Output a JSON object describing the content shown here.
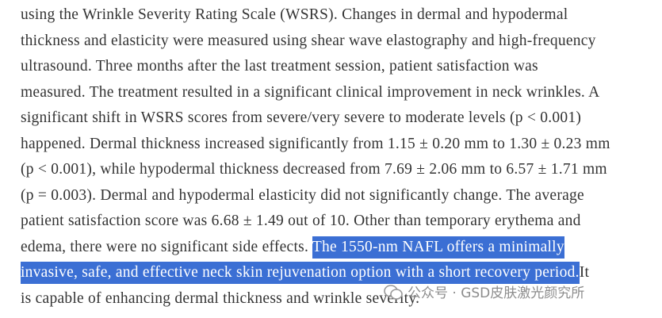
{
  "paragraph": {
    "lines": [
      [
        {
          "text": "using the Wrinkle Severity Rating Scale (WSRS). Changes in dermal and hypodermal"
        }
      ],
      [
        {
          "text": "thickness and elasticity were measured using shear wave elastography and high-frequency"
        }
      ],
      [
        {
          "text": "ultrasound. Three months after the last treatment session, patient satisfaction was"
        }
      ],
      [
        {
          "text": "measured. The treatment resulted in a significant clinical improvement in neck wrinkles. A"
        }
      ],
      [
        {
          "text": "significant shift in WSRS scores from severe/very severe to moderate levels (p < 0.001)"
        }
      ],
      [
        {
          "text": "happened. Dermal thickness increased significantly from 1.15 ± 0.20 mm to 1.30 ± 0.23 mm"
        }
      ],
      [
        {
          "text": "(p < 0.001), while hypodermal thickness decreased from 7.69 ± 2.06 mm to 6.57 ± 1.71 mm"
        }
      ],
      [
        {
          "text": "(p = 0.003). Dermal and hypodermal elasticity did not significantly change. The average"
        }
      ],
      [
        {
          "text": "patient satisfaction score was 6.68 ± 1.49 out of 10. Other than temporary erythema and"
        }
      ],
      [
        {
          "text": "edema, there were no significant side effects. "
        },
        {
          "text": "The 1550-nm NAFL offers a minimally",
          "highlight": true
        }
      ],
      [
        {
          "text": "invasive, safe, and effective neck skin rejuvenation option with a short recovery period.",
          "highlight": true
        },
        {
          "text": "It"
        }
      ],
      [
        {
          "text": "is capable of enhancing dermal thickness and wrinkle severity."
        }
      ]
    ]
  },
  "watermark": {
    "text": "公众号 · GSD皮肤激光颜究所"
  }
}
